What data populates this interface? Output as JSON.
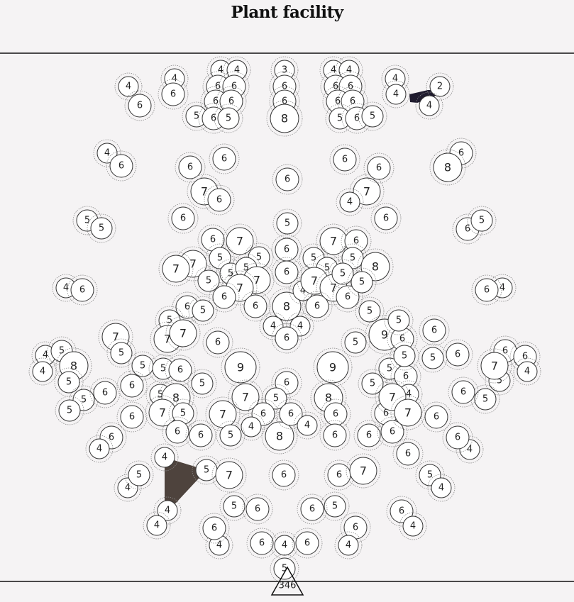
{
  "title": "Plant facility",
  "total": "346",
  "colors": {
    "background": "#f5f3f4",
    "stone": "#ffffff",
    "outline": "#333333",
    "dash": "#8a8a8a",
    "shape_dark": "#1f1b2e",
    "shape_brown": "#4e433d"
  },
  "nodes": [
    {
      "id": "a1",
      "n": 4
    },
    {
      "id": "a2",
      "n": 6
    },
    {
      "id": "a3",
      "n": 4
    },
    {
      "id": "a4",
      "n": 6
    },
    {
      "id": "a5",
      "n": 4
    },
    {
      "id": "a6",
      "n": 4
    },
    {
      "id": "a7",
      "n": 6
    },
    {
      "id": "a8",
      "n": 6
    },
    {
      "id": "a9",
      "n": 6
    },
    {
      "id": "a10",
      "n": 6
    },
    {
      "id": "a11",
      "n": 5
    },
    {
      "id": "a12",
      "n": 6
    },
    {
      "id": "a13",
      "n": 5
    },
    {
      "id": "a14",
      "n": 3
    },
    {
      "id": "a15",
      "n": 6
    },
    {
      "id": "a16",
      "n": 6
    },
    {
      "id": "a17",
      "n": 8
    },
    {
      "id": "a18",
      "n": 4
    },
    {
      "id": "a19",
      "n": 4
    },
    {
      "id": "a20",
      "n": 6
    },
    {
      "id": "a21",
      "n": 6
    },
    {
      "id": "a22",
      "n": 6
    },
    {
      "id": "a23",
      "n": 6
    },
    {
      "id": "a24",
      "n": 5
    },
    {
      "id": "a25",
      "n": 6
    },
    {
      "id": "a26",
      "n": 5
    },
    {
      "id": "a27",
      "n": 4
    },
    {
      "id": "a28",
      "n": 4
    },
    {
      "id": "a29",
      "n": 2
    },
    {
      "id": "a30",
      "n": 4
    },
    {
      "id": "b1",
      "n": 4
    },
    {
      "id": "b2",
      "n": 6
    },
    {
      "id": "b3",
      "n": 6
    },
    {
      "id": "b4",
      "n": 6
    },
    {
      "id": "b5",
      "n": 7
    },
    {
      "id": "b6",
      "n": 6
    },
    {
      "id": "b7",
      "n": 6
    },
    {
      "id": "b8",
      "n": 6
    },
    {
      "id": "b9",
      "n": 6
    },
    {
      "id": "b10",
      "n": 7
    },
    {
      "id": "b11",
      "n": 6
    },
    {
      "id": "b12",
      "n": 4
    },
    {
      "id": "b13",
      "n": 6
    },
    {
      "id": "c1",
      "n": 5
    },
    {
      "id": "c2",
      "n": 5
    },
    {
      "id": "c3",
      "n": 6
    },
    {
      "id": "c4",
      "n": 8
    },
    {
      "id": "c5",
      "n": 6
    },
    {
      "id": "c6",
      "n": 5
    },
    {
      "id": "c7",
      "n": 5
    },
    {
      "id": "d1",
      "n": 6
    },
    {
      "id": "d2",
      "n": 7
    },
    {
      "id": "d3",
      "n": 7
    },
    {
      "id": "d4",
      "n": 7
    },
    {
      "id": "d5",
      "n": 5
    },
    {
      "id": "d6",
      "n": 5
    },
    {
      "id": "d7",
      "n": 5
    },
    {
      "id": "d8",
      "n": 5
    },
    {
      "id": "d9",
      "n": 5
    },
    {
      "id": "d10",
      "n": 7
    },
    {
      "id": "d11",
      "n": 7
    },
    {
      "id": "d12",
      "n": 6
    },
    {
      "id": "d13",
      "n": 6
    },
    {
      "id": "d14",
      "n": 6
    },
    {
      "id": "d15",
      "n": 6
    },
    {
      "id": "d16",
      "n": 8
    },
    {
      "id": "d17",
      "n": 4
    },
    {
      "id": "d18",
      "n": 4
    },
    {
      "id": "d19",
      "n": 4
    },
    {
      "id": "d20",
      "n": 6
    },
    {
      "id": "d21",
      "n": 7
    },
    {
      "id": "d22",
      "n": 6
    },
    {
      "id": "d23",
      "n": 5
    },
    {
      "id": "d24",
      "n": 5
    },
    {
      "id": "d25",
      "n": 5
    },
    {
      "id": "d26",
      "n": 7
    },
    {
      "id": "d27",
      "n": 7
    },
    {
      "id": "d28",
      "n": 5
    },
    {
      "id": "d29",
      "n": 6
    },
    {
      "id": "d30",
      "n": 6
    },
    {
      "id": "d31",
      "n": 8
    },
    {
      "id": "d32",
      "n": 6
    },
    {
      "id": "d33",
      "n": 5
    },
    {
      "id": "e1",
      "n": 4
    },
    {
      "id": "e2",
      "n": 6
    },
    {
      "id": "e3",
      "n": 4
    },
    {
      "id": "e4",
      "n": 6
    },
    {
      "id": "f1",
      "n": 6
    },
    {
      "id": "f2",
      "n": 5
    },
    {
      "id": "f3",
      "n": 5
    },
    {
      "id": "f4",
      "n": 7
    },
    {
      "id": "f5",
      "n": 7
    },
    {
      "id": "f6",
      "n": 7
    },
    {
      "id": "f7",
      "n": 5
    },
    {
      "id": "f8",
      "n": 6
    },
    {
      "id": "f9",
      "n": 5
    },
    {
      "id": "f10",
      "n": 9
    },
    {
      "id": "f11",
      "n": 6
    },
    {
      "id": "f12",
      "n": 5
    },
    {
      "id": "f13",
      "n": 6
    },
    {
      "id": "f14",
      "n": 5
    },
    {
      "id": "f15",
      "n": 6
    },
    {
      "id": "g1",
      "n": 4
    },
    {
      "id": "g2",
      "n": 5
    },
    {
      "id": "g3",
      "n": 8
    },
    {
      "id": "g4",
      "n": 4
    },
    {
      "id": "g5",
      "n": 5
    },
    {
      "id": "g6",
      "n": 5
    },
    {
      "id": "g7",
      "n": 6
    },
    {
      "id": "g8",
      "n": 5
    },
    {
      "id": "g9",
      "n": 5
    },
    {
      "id": "g10",
      "n": 6
    },
    {
      "id": "g11",
      "n": 5
    },
    {
      "id": "g12",
      "n": 5
    },
    {
      "id": "g13",
      "n": 8
    },
    {
      "id": "g14",
      "n": 5
    },
    {
      "id": "g15",
      "n": 7
    },
    {
      "id": "g16",
      "n": 6
    },
    {
      "id": "g17",
      "n": 5
    },
    {
      "id": "g18",
      "n": 9
    },
    {
      "id": "g19",
      "n": 9
    },
    {
      "id": "g20",
      "n": 6
    },
    {
      "id": "g21",
      "n": 5
    },
    {
      "id": "g22",
      "n": 7
    },
    {
      "id": "g23",
      "n": 6
    },
    {
      "id": "g24",
      "n": 4
    },
    {
      "id": "g25",
      "n": 7
    },
    {
      "id": "g26",
      "n": 8
    },
    {
      "id": "g27",
      "n": 6
    },
    {
      "id": "g28",
      "n": 8
    },
    {
      "id": "g29",
      "n": 6
    },
    {
      "id": "g30",
      "n": 5
    },
    {
      "id": "g31",
      "n": 6
    },
    {
      "id": "g32",
      "n": 6
    },
    {
      "id": "g33",
      "n": 6
    },
    {
      "id": "g34",
      "n": 4
    },
    {
      "id": "g35",
      "n": 4
    },
    {
      "id": "g36",
      "n": 6
    },
    {
      "id": "g37",
      "n": 6
    },
    {
      "id": "h1",
      "n": 5
    },
    {
      "id": "h2",
      "n": 6
    },
    {
      "id": "h3",
      "n": 6
    },
    {
      "id": "h4",
      "n": 6
    },
    {
      "id": "h5",
      "n": 5
    },
    {
      "id": "h6",
      "n": 4
    },
    {
      "id": "h7",
      "n": 5
    },
    {
      "id": "h8",
      "n": 6
    },
    {
      "id": "h9",
      "n": 4
    },
    {
      "id": "h10",
      "n": 6
    },
    {
      "id": "h11",
      "n": 6
    },
    {
      "id": "h12",
      "n": 4
    },
    {
      "id": "h13",
      "n": 6
    },
    {
      "id": "h14",
      "n": 5
    },
    {
      "id": "h15",
      "n": 5
    },
    {
      "id": "h16",
      "n": 5
    },
    {
      "id": "h17",
      "n": 6
    },
    {
      "id": "h18",
      "n": 6
    },
    {
      "id": "h19",
      "n": 7
    },
    {
      "id": "h20",
      "n": 7
    },
    {
      "id": "h21",
      "n": 6
    },
    {
      "id": "h22",
      "n": 6
    },
    {
      "id": "h23",
      "n": 7
    },
    {
      "id": "h24",
      "n": 4
    },
    {
      "id": "i1",
      "n": 4
    },
    {
      "id": "i2",
      "n": 6
    },
    {
      "id": "i3",
      "n": 5
    },
    {
      "id": "i4",
      "n": 4
    },
    {
      "id": "i5",
      "n": 4
    },
    {
      "id": "i6",
      "n": 5
    },
    {
      "id": "i7",
      "n": 7
    },
    {
      "id": "i8",
      "n": 6
    },
    {
      "id": "i9",
      "n": 6
    },
    {
      "id": "i10",
      "n": 7
    },
    {
      "id": "i11",
      "n": 6
    },
    {
      "id": "i12",
      "n": 5
    },
    {
      "id": "i13",
      "n": 4
    },
    {
      "id": "j1",
      "n": 4
    },
    {
      "id": "j2",
      "n": 4
    },
    {
      "id": "j3",
      "n": 5
    },
    {
      "id": "j4",
      "n": 6
    },
    {
      "id": "j5",
      "n": 6
    },
    {
      "id": "j6",
      "n": 5
    },
    {
      "id": "j7",
      "n": 6
    },
    {
      "id": "j8",
      "n": 6
    },
    {
      "id": "j9",
      "n": 4
    },
    {
      "id": "j10",
      "n": 6
    },
    {
      "id": "j11",
      "n": 4
    },
    {
      "id": "k1",
      "n": 6
    },
    {
      "id": "k2",
      "n": 4
    },
    {
      "id": "k3",
      "n": 6
    },
    {
      "id": "k4",
      "n": 5
    },
    {
      "id": "k5",
      "n": 6
    },
    {
      "id": "k6",
      "n": 4
    },
    {
      "id": "k7",
      "n": 5
    },
    {
      "id": "l1",
      "n": 4
    },
    {
      "id": "l2",
      "n": 4
    },
    {
      "id": "l3",
      "n": 8
    },
    {
      "id": "l4",
      "n": 5
    },
    {
      "id": "l5",
      "n": 5
    },
    {
      "id": "l6",
      "n": 5
    },
    {
      "id": "m1",
      "n": 6
    },
    {
      "id": "m2",
      "n": 4
    },
    {
      "id": "m3",
      "n": 6
    },
    {
      "id": "m4",
      "n": 4
    },
    {
      "id": "m5",
      "n": 7
    },
    {
      "id": "m6",
      "n": 5
    },
    {
      "id": "m7",
      "n": 5
    },
    {
      "id": "m8",
      "n": 5
    }
  ]
}
